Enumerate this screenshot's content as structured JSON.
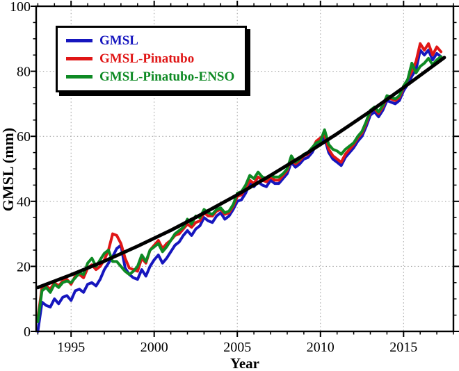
{
  "chart_data": {
    "type": "line",
    "title": "",
    "xlabel": "Year",
    "ylabel": "GMSL (mm)",
    "xlim": [
      1992.9,
      2018.0
    ],
    "ylim": [
      0,
      100
    ],
    "x_major_ticks": [
      1995,
      2000,
      2005,
      2010,
      2015
    ],
    "x_minor_step": 1,
    "y_major_ticks": [
      0,
      20,
      40,
      60,
      80,
      100
    ],
    "y_minor_step": 5,
    "grid": "dotted-at-major-ticks",
    "legend_position": "top-left",
    "x": [
      1993,
      1993.25,
      1993.5,
      1993.75,
      1994,
      1994.25,
      1994.5,
      1994.75,
      1995,
      1995.25,
      1995.5,
      1995.75,
      1996,
      1996.25,
      1996.5,
      1996.75,
      1997,
      1997.25,
      1997.5,
      1997.75,
      1998,
      1998.25,
      1998.5,
      1998.75,
      1999,
      1999.25,
      1999.5,
      1999.75,
      2000,
      2000.25,
      2000.5,
      2000.75,
      2001,
      2001.25,
      2001.5,
      2001.75,
      2002,
      2002.25,
      2002.5,
      2002.75,
      2003,
      2003.25,
      2003.5,
      2003.75,
      2004,
      2004.25,
      2004.5,
      2004.75,
      2005,
      2005.25,
      2005.5,
      2005.75,
      2006,
      2006.25,
      2006.5,
      2006.75,
      2007,
      2007.25,
      2007.5,
      2007.75,
      2008,
      2008.25,
      2008.5,
      2008.75,
      2009,
      2009.25,
      2009.5,
      2009.75,
      2010,
      2010.25,
      2010.5,
      2010.75,
      2011,
      2011.25,
      2011.5,
      2011.75,
      2012,
      2012.25,
      2012.5,
      2012.75,
      2013,
      2013.25,
      2013.5,
      2013.75,
      2014,
      2014.25,
      2014.5,
      2014.75,
      2015,
      2015.25,
      2015.5,
      2015.75,
      2016,
      2016.25,
      2016.5,
      2016.75,
      2017,
      2017.25
    ],
    "series": [
      {
        "name": "GMSL",
        "color": "#1616BE",
        "values": [
          0,
          9,
          8,
          7.5,
          10,
          8.5,
          10.5,
          11,
          9.5,
          12.5,
          13,
          12,
          14.5,
          15,
          14,
          16,
          19,
          21,
          23,
          25.5,
          26.5,
          19.5,
          17.5,
          16.5,
          16,
          19,
          17,
          20,
          22,
          23.5,
          21,
          22.5,
          24.5,
          26.5,
          27.5,
          29.5,
          31,
          29.5,
          31.5,
          32.5,
          35,
          34,
          33.5,
          35.5,
          36.5,
          34.5,
          35.5,
          37.5,
          40,
          40.5,
          42.5,
          45.5,
          44.5,
          46,
          45,
          44.5,
          46.5,
          45.5,
          45.5,
          47,
          48.5,
          52,
          50.5,
          51.5,
          53,
          53.5,
          55,
          57.5,
          58.5,
          59.5,
          55,
          53,
          52,
          51,
          53.5,
          55,
          56.5,
          58.5,
          60,
          63,
          66.5,
          67.5,
          66,
          68,
          71,
          70.5,
          70,
          71,
          74,
          76,
          78.5,
          80.5,
          86.5,
          85,
          86.5,
          83.5,
          85.5,
          84.5
        ]
      },
      {
        "name": "GMSL-Pinatubo",
        "color": "#E01616",
        "values": [
          4,
          13.5,
          14,
          13,
          15,
          14,
          15.5,
          16,
          14.5,
          17,
          17.5,
          16.5,
          19.5,
          20.5,
          19,
          20,
          22,
          25,
          30,
          29.5,
          27,
          22.5,
          19.5,
          19,
          18.5,
          22.5,
          21,
          25,
          26.5,
          28,
          25.5,
          27,
          28,
          29.5,
          30,
          31.5,
          33,
          32,
          33.5,
          34,
          36.5,
          35.5,
          35.5,
          37,
          37.5,
          36,
          36.5,
          38.5,
          41.5,
          42,
          44,
          46.5,
          45.5,
          47.5,
          46.5,
          46,
          47.5,
          46.5,
          46.5,
          48,
          49.5,
          53,
          51.5,
          52.5,
          54,
          54.5,
          56,
          58.5,
          59.5,
          60.5,
          56,
          54,
          53,
          52,
          54.5,
          56,
          57.5,
          59.5,
          61,
          64,
          67.5,
          68.5,
          67,
          69,
          72,
          71.5,
          71,
          72,
          75,
          77.5,
          80,
          83,
          88.5,
          86.5,
          88.5,
          85,
          87.5,
          86
        ]
      },
      {
        "name": "GMSL-Pinatubo-ENSO",
        "color": "#0E8A24",
        "values": [
          3,
          12.5,
          13.5,
          12,
          14.5,
          13.5,
          15,
          15.5,
          15,
          16.5,
          18,
          17.5,
          21,
          22.5,
          20,
          22,
          24,
          25,
          21.5,
          21.5,
          20,
          18.5,
          17.5,
          18.5,
          20,
          23.5,
          21.5,
          25,
          26,
          27,
          24.5,
          26,
          28,
          30,
          31,
          32,
          34.5,
          33,
          35.5,
          35,
          37.5,
          36.5,
          36,
          37.5,
          38,
          36.5,
          37,
          39,
          42.5,
          43,
          45,
          48,
          47,
          49,
          47.5,
          47,
          48,
          47.5,
          47.5,
          48.5,
          50,
          54,
          52,
          53,
          54.5,
          55,
          56.5,
          58,
          58.5,
          62,
          57.5,
          56,
          55.5,
          54.5,
          56,
          57,
          58,
          60,
          61.5,
          64.5,
          68,
          69,
          67.5,
          69.5,
          72.5,
          72,
          71.5,
          72.5,
          75.5,
          77.5,
          82.5,
          79.5,
          81.5,
          82.5,
          84,
          82,
          83.5,
          84.5
        ]
      }
    ],
    "trend": {
      "name": "trend-line",
      "color": "#000000",
      "x": [
        1993,
        1995,
        1997,
        1999,
        2001,
        2003,
        2005,
        2007,
        2009,
        2011,
        2013,
        2015,
        2017,
        2017.45
      ],
      "values": [
        13.5,
        17.4,
        21.6,
        26.2,
        31.1,
        36.4,
        42,
        48,
        54.2,
        60.8,
        67.7,
        75,
        82.5,
        84.2
      ]
    },
    "legend_border_color": "#000000",
    "legend_background": "#ffffff",
    "axis_color": "#000000",
    "grid_color": "#9a9a9a"
  }
}
